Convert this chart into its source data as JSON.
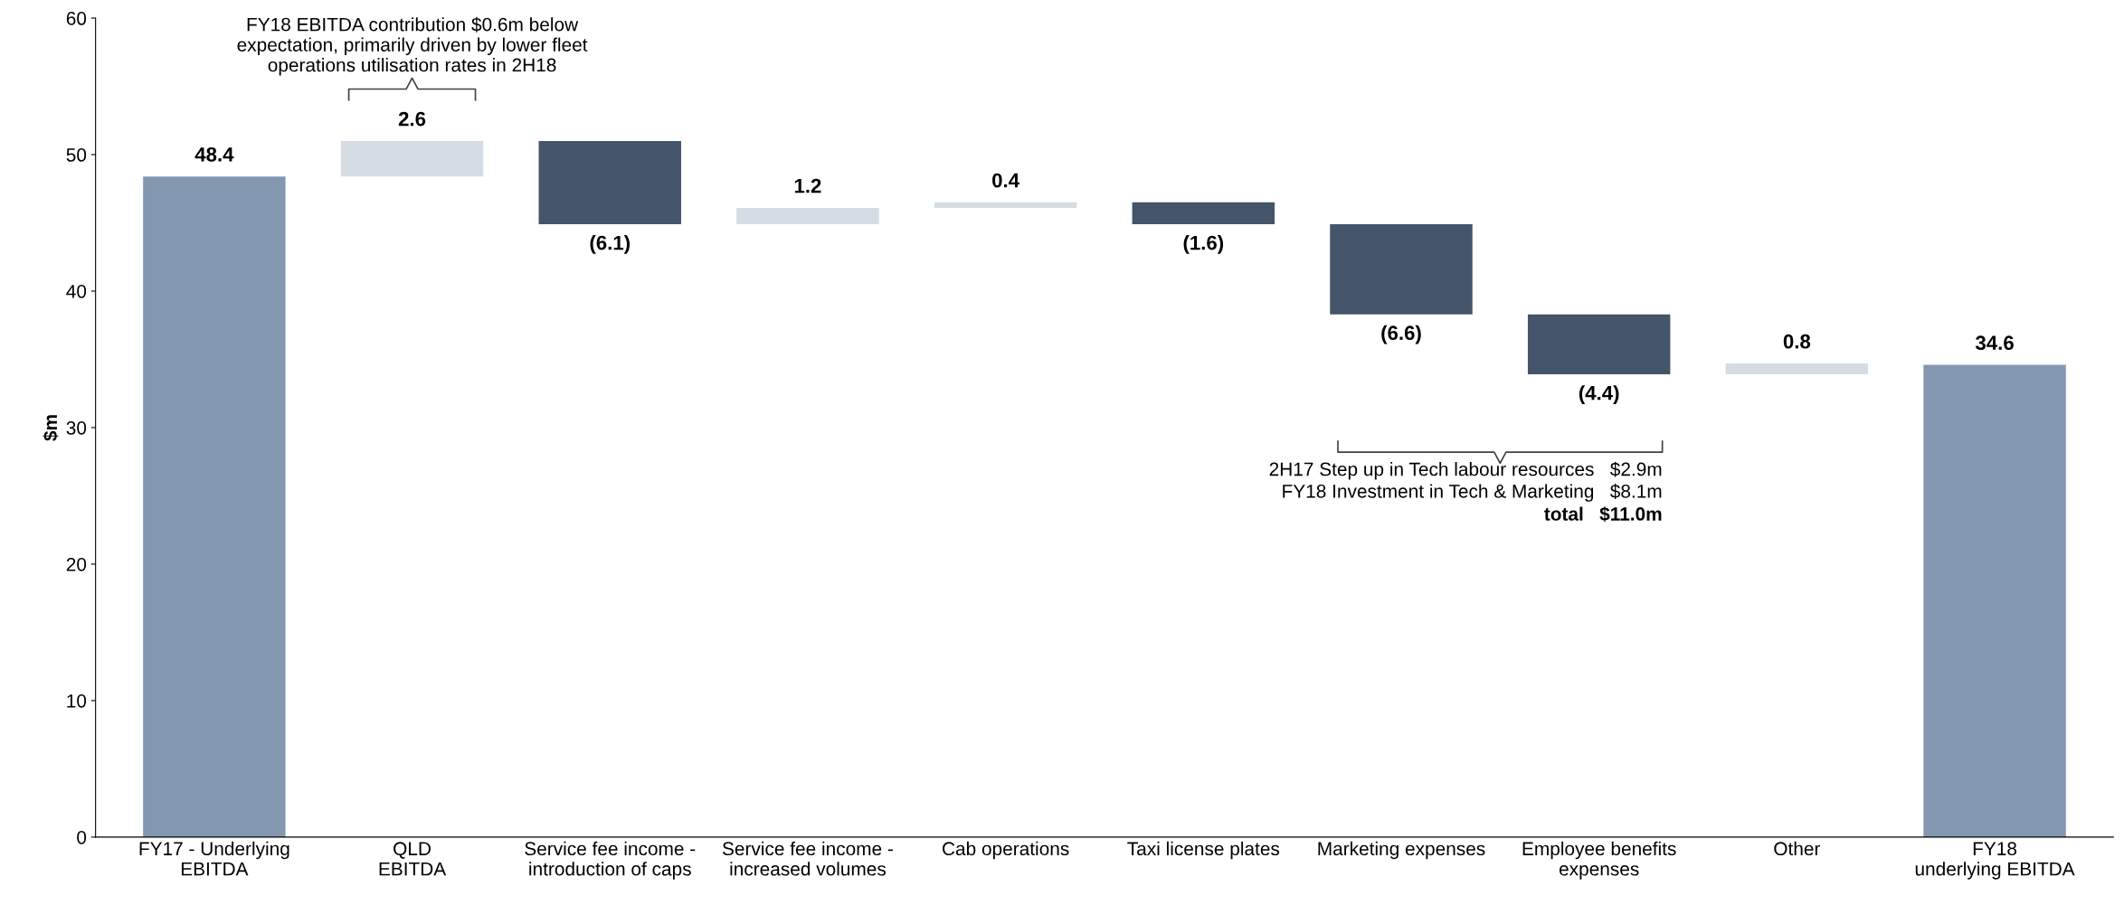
{
  "chart_data": {
    "type": "bar",
    "ylabel": "$m",
    "categories": [
      "FY17 - Underlying\nEBITDA",
      "QLD\nEBITDA",
      "Service fee income -\nintroduction of caps",
      "Service fee income -\nincreased volumes",
      "Cab operations",
      "Taxi license plates",
      "Marketing expenses",
      "Employee benefits\nexpenses",
      "Other",
      "FY18\nunderlying EBITDA"
    ],
    "values": [
      48.4,
      2.6,
      -6.1,
      1.2,
      0.4,
      -1.6,
      -6.6,
      -4.4,
      0.8,
      34.6
    ],
    "base": [
      0,
      48.4,
      51.0,
      44.9,
      46.1,
      46.5,
      44.9,
      38.3,
      33.9,
      0
    ],
    "colors": [
      "#8497b0",
      "#d6dce4",
      "#44546a",
      "#d6dce4",
      "#d6dce4",
      "#44546a",
      "#44546a",
      "#44546a",
      "#d6dce4",
      "#8497b0"
    ],
    "value_labels": [
      "48.4",
      "2.6",
      "(6.1)",
      "1.2",
      "0.4",
      "(1.6)",
      "(6.6)",
      "(4.4)",
      "0.8",
      "34.6"
    ],
    "ylim": [
      0,
      60
    ],
    "yticks": [
      0,
      10,
      20,
      30,
      40,
      50,
      60
    ],
    "grid": false,
    "legend": false,
    "annotations": [
      "FY18 EBITDA contribution $0.6m below\nexpectation, primarily driven by lower fleet\noperations utilisation rates in 2H18",
      "2H17 Step up in Tech labour resources   $2.9m\nFY18 Investment in Tech & Marketing   $8.1m",
      "total   $11.0m"
    ]
  }
}
